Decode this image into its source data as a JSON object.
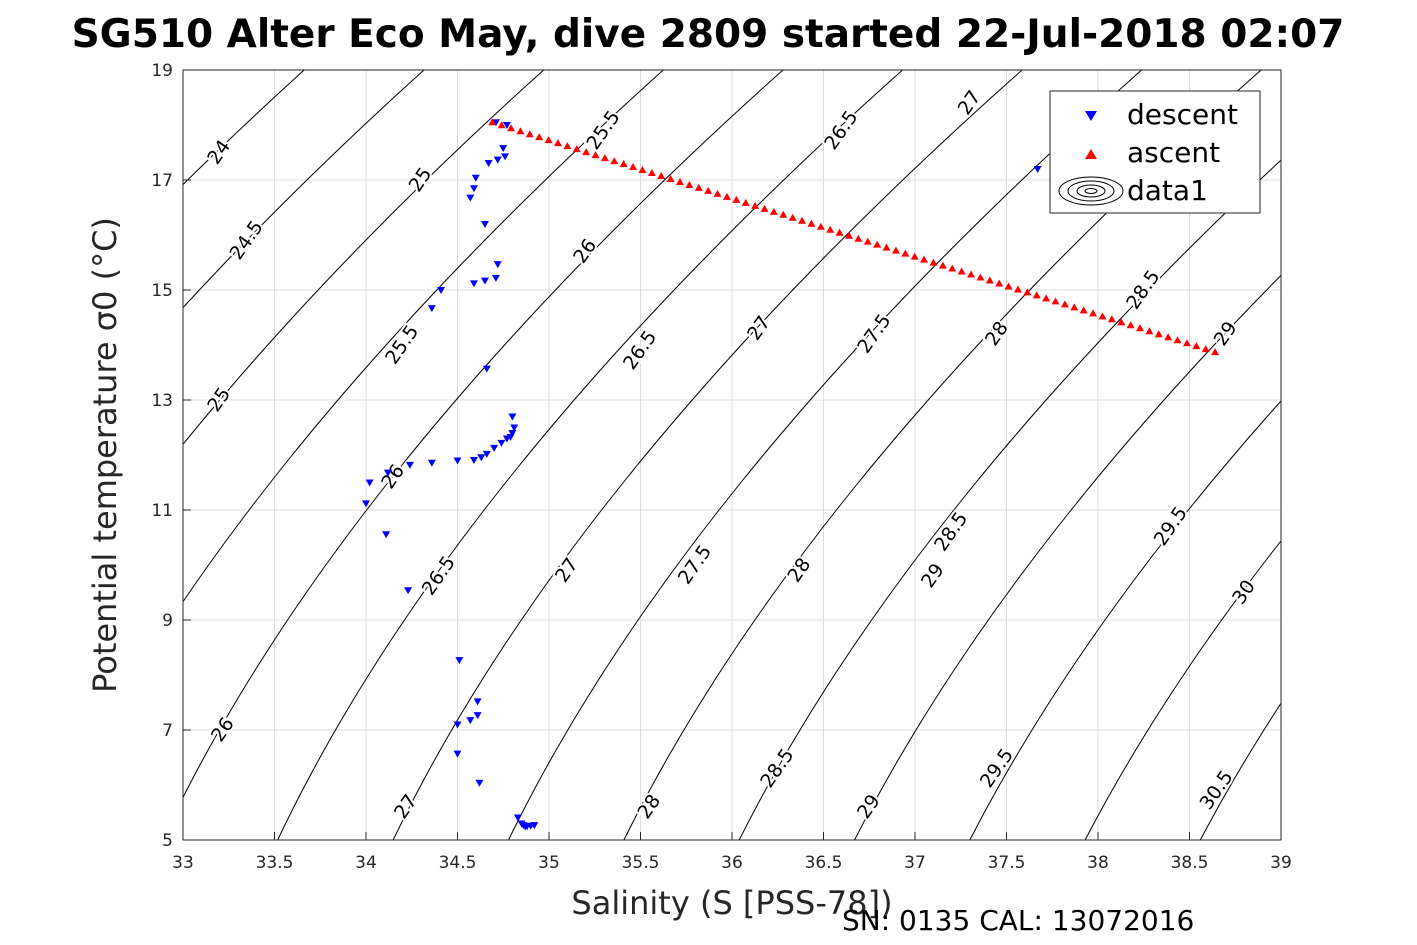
{
  "chart_data": {
    "type": "scatter",
    "title": "SG510 Alter Eco May, dive 2809 started 22-Jul-2018 02:07",
    "xlabel": "Salinity (S [PSS-78])",
    "ylabel": "Potential temperature σ0 (°C)",
    "xlim": [
      33,
      39
    ],
    "ylim": [
      5,
      19
    ],
    "xticks": [
      33,
      33.5,
      34,
      34.5,
      35,
      35.5,
      36,
      36.5,
      37,
      37.5,
      38,
      38.5,
      39
    ],
    "xtick_labels": [
      "33",
      "33.5",
      "34",
      "34.5",
      "35",
      "35.5",
      "36",
      "36.5",
      "37",
      "37.5",
      "38",
      "38.5",
      "39"
    ],
    "yticks": [
      5,
      7,
      9,
      11,
      13,
      15,
      17,
      19
    ],
    "ytick_labels": [
      "5",
      "7",
      "9",
      "11",
      "13",
      "15",
      "17",
      "19"
    ],
    "grid": true,
    "legend_position": "top-right",
    "footer": "SN: 0135  CAL: 13072016",
    "colors": {
      "descent": "#0000ff",
      "ascent": "#ff0000",
      "contour": "#000000",
      "grid": "#dcdcdc"
    },
    "contours": {
      "levels": [
        24,
        24.5,
        25,
        25.5,
        26,
        26.5,
        27,
        27.5,
        28,
        28.5,
        29,
        29.5,
        30,
        30.5
      ],
      "labels": [
        {
          "text": "24",
          "x": 33.2,
          "y": 17.5
        },
        {
          "text": "24.5",
          "x": 33.35,
          "y": 15.9
        },
        {
          "text": "25",
          "x": 33.2,
          "y": 13.0
        },
        {
          "text": "26",
          "x": 33.22,
          "y": 7.0
        },
        {
          "text": "25",
          "x": 34.3,
          "y": 17.0
        },
        {
          "text": "25.5",
          "x": 34.2,
          "y": 14.0
        },
        {
          "text": "26",
          "x": 34.15,
          "y": 11.6
        },
        {
          "text": "26.5",
          "x": 34.4,
          "y": 9.8
        },
        {
          "text": "27",
          "x": 34.22,
          "y": 5.6
        },
        {
          "text": "25.5",
          "x": 35.3,
          "y": 17.9
        },
        {
          "text": "26",
          "x": 35.2,
          "y": 15.7
        },
        {
          "text": "26.5",
          "x": 35.5,
          "y": 13.9
        },
        {
          "text": "27",
          "x": 35.1,
          "y": 9.9
        },
        {
          "text": "27.5",
          "x": 35.8,
          "y": 10.0
        },
        {
          "text": "28",
          "x": 35.55,
          "y": 5.6
        },
        {
          "text": "26.5",
          "x": 36.6,
          "y": 17.9
        },
        {
          "text": "27",
          "x": 36.15,
          "y": 14.3
        },
        {
          "text": "27.5",
          "x": 36.78,
          "y": 14.2
        },
        {
          "text": "28",
          "x": 36.37,
          "y": 9.9
        },
        {
          "text": "28.5",
          "x": 36.25,
          "y": 6.3
        },
        {
          "text": "27",
          "x": 37.3,
          "y": 18.4
        },
        {
          "text": "28",
          "x": 37.45,
          "y": 14.2
        },
        {
          "text": "28.5",
          "x": 37.2,
          "y": 10.6
        },
        {
          "text": "29",
          "x": 37.1,
          "y": 9.8
        },
        {
          "text": "29",
          "x": 36.75,
          "y": 5.6
        },
        {
          "text": "29.5",
          "x": 37.45,
          "y": 6.3
        },
        {
          "text": "28.5",
          "x": 38.25,
          "y": 15.0
        },
        {
          "text": "29",
          "x": 38.7,
          "y": 14.2
        },
        {
          "text": "29.5",
          "x": 38.4,
          "y": 10.7
        },
        {
          "text": "30",
          "x": 38.8,
          "y": 9.5
        },
        {
          "text": "30.5",
          "x": 38.65,
          "y": 5.9
        }
      ]
    },
    "series": [
      {
        "name": "descent",
        "marker": "triangle-down",
        "points": [
          [
            34.71,
            18.05
          ],
          [
            34.77,
            18.0
          ],
          [
            34.75,
            17.58
          ],
          [
            34.76,
            17.43
          ],
          [
            34.72,
            17.37
          ],
          [
            34.67,
            17.31
          ],
          [
            34.6,
            17.04
          ],
          [
            34.59,
            16.85
          ],
          [
            34.57,
            16.68
          ],
          [
            34.65,
            16.2
          ],
          [
            34.72,
            15.47
          ],
          [
            34.71,
            15.22
          ],
          [
            34.65,
            15.17
          ],
          [
            34.59,
            15.12
          ],
          [
            34.41,
            15.0
          ],
          [
            34.36,
            14.67
          ],
          [
            34.66,
            13.57
          ],
          [
            34.8,
            12.7
          ],
          [
            34.81,
            12.5
          ],
          [
            34.8,
            12.4
          ],
          [
            34.79,
            12.33
          ],
          [
            34.77,
            12.3
          ],
          [
            34.74,
            12.22
          ],
          [
            34.7,
            12.13
          ],
          [
            34.66,
            12.02
          ],
          [
            34.63,
            11.96
          ],
          [
            34.59,
            11.91
          ],
          [
            34.5,
            11.9
          ],
          [
            34.36,
            11.86
          ],
          [
            34.24,
            11.82
          ],
          [
            34.12,
            11.68
          ],
          [
            34.02,
            11.5
          ],
          [
            34.0,
            11.12
          ],
          [
            34.11,
            10.56
          ],
          [
            34.23,
            9.54
          ],
          [
            34.51,
            8.27
          ],
          [
            34.61,
            7.52
          ],
          [
            34.61,
            7.27
          ],
          [
            34.57,
            7.18
          ],
          [
            34.5,
            7.1
          ],
          [
            34.5,
            6.57
          ],
          [
            34.62,
            6.04
          ],
          [
            34.83,
            5.41
          ],
          [
            34.85,
            5.3
          ],
          [
            34.86,
            5.27
          ],
          [
            34.87,
            5.25
          ],
          [
            34.88,
            5.25
          ],
          [
            34.9,
            5.26
          ],
          [
            34.92,
            5.27
          ],
          [
            37.67,
            17.2
          ]
        ]
      },
      {
        "name": "ascent",
        "marker": "triangle-up",
        "from": [
          34.69,
          18.05
        ],
        "to": [
          38.64,
          13.87
        ],
        "count": 78
      },
      {
        "name": "data1",
        "marker": "contour-icon",
        "points": []
      }
    ]
  }
}
